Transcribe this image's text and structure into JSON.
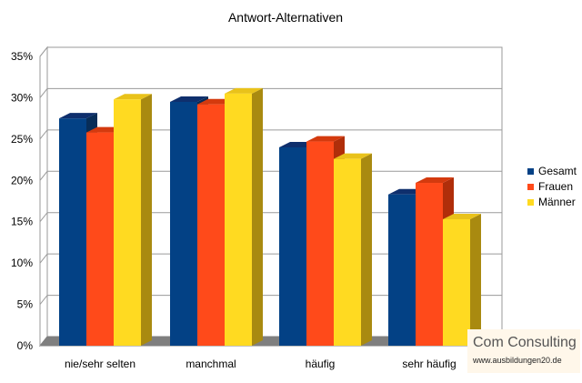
{
  "chart_data": {
    "type": "bar",
    "title": "Antwort-Alternativen",
    "xlabel": "",
    "ylabel": "",
    "categories": [
      "nie/sehr selten",
      "manchmal",
      "häufig",
      "sehr häufig"
    ],
    "series": [
      {
        "name": "Gesamt",
        "values": [
          27.5,
          29.5,
          24.0,
          18.3
        ],
        "color": "#034185",
        "top": "#0f2f6d",
        "side": "#082d58"
      },
      {
        "name": "Frauen",
        "values": [
          25.8,
          29.2,
          24.7,
          19.7
        ],
        "color": "#ff4a1a",
        "top": "#d43a0e",
        "side": "#b02e0a"
      },
      {
        "name": "Männer",
        "values": [
          29.8,
          30.5,
          22.6,
          15.3
        ],
        "color": "#ffda21",
        "top": "#e9c21a",
        "side": "#a98a10"
      }
    ],
    "yticks": [
      "0%",
      "5%",
      "10%",
      "15%",
      "20%",
      "25%",
      "30%",
      "35%"
    ],
    "ylim": [
      0,
      35
    ],
    "grid": true,
    "legend": "right"
  },
  "logo": {
    "brand": "Com Consulting",
    "url": "www.ausbildungen20.de"
  }
}
